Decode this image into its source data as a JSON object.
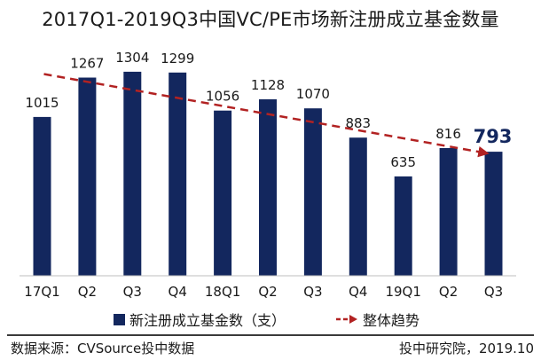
{
  "chart_data": {
    "type": "bar",
    "title": "2017Q1-2019Q3中国VC/PE市场新注册成立基金数量",
    "categories": [
      "17Q1",
      "Q2",
      "Q3",
      "Q4",
      "18Q1",
      "Q2",
      "Q3",
      "Q4",
      "19Q1",
      "Q2",
      "Q3"
    ],
    "series": [
      {
        "name": "新注册成立基金数（支）",
        "values": [
          1015,
          1267,
          1304,
          1299,
          1056,
          1128,
          1070,
          883,
          635,
          816,
          793
        ],
        "color": "#13275e"
      }
    ],
    "trend": {
      "name": "整体趋势",
      "color": "#b22222",
      "style": "dashed-arrow",
      "from_value": 1267,
      "to_value": 793
    },
    "highlight": {
      "index": 10,
      "value": "793",
      "color": "#13275e"
    },
    "ylim": [
      0,
      1400
    ],
    "xlabel": "",
    "ylabel": "",
    "grid": false,
    "legend_position": "bottom"
  },
  "footer": {
    "source": "数据来源：CVSource投中数据",
    "credit": "投中研究院，2019.10"
  }
}
